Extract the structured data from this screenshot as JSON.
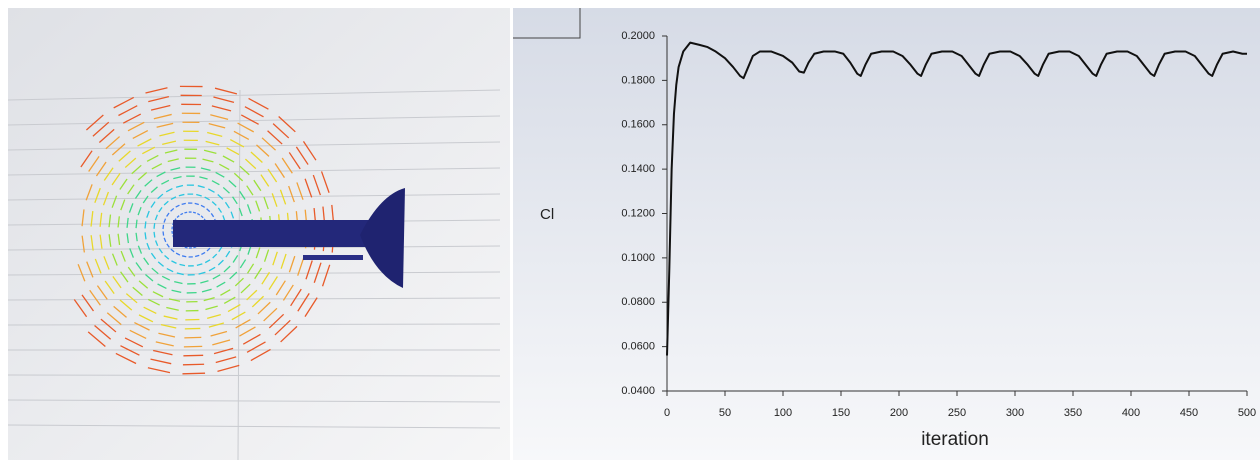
{
  "chart_data": {
    "type": "line",
    "ylabel": "Cl",
    "xlabel": "iteration",
    "color": "#111111",
    "x": [
      0,
      2,
      4,
      6,
      8,
      10,
      14,
      20,
      28,
      35,
      42,
      50,
      57,
      63,
      66,
      70,
      74,
      80,
      90,
      100,
      108,
      114,
      118,
      122,
      127,
      135,
      145,
      152,
      158,
      164,
      167,
      171,
      176,
      185,
      195,
      203,
      210,
      216,
      219,
      223,
      228,
      237,
      246,
      254,
      260,
      266,
      269,
      273,
      278,
      287,
      296,
      304,
      311,
      317,
      320,
      324,
      329,
      338,
      347,
      355,
      361,
      367,
      370,
      374,
      379,
      388,
      397,
      405,
      411,
      417,
      420,
      424,
      429,
      438,
      447,
      455,
      461,
      467,
      470,
      474,
      479,
      488,
      496,
      500
    ],
    "values": [
      0.056,
      0.095,
      0.14,
      0.165,
      0.178,
      0.186,
      0.193,
      0.197,
      0.196,
      0.195,
      0.193,
      0.19,
      0.186,
      0.182,
      0.181,
      0.186,
      0.191,
      0.193,
      0.193,
      0.191,
      0.188,
      0.184,
      0.1835,
      0.188,
      0.192,
      0.193,
      0.193,
      0.192,
      0.188,
      0.183,
      0.182,
      0.187,
      0.192,
      0.193,
      0.193,
      0.191,
      0.187,
      0.183,
      0.182,
      0.187,
      0.192,
      0.193,
      0.193,
      0.191,
      0.187,
      0.183,
      0.182,
      0.187,
      0.192,
      0.193,
      0.193,
      0.191,
      0.187,
      0.183,
      0.182,
      0.187,
      0.192,
      0.193,
      0.193,
      0.191,
      0.187,
      0.183,
      0.182,
      0.187,
      0.192,
      0.193,
      0.193,
      0.191,
      0.187,
      0.183,
      0.182,
      0.187,
      0.192,
      0.193,
      0.193,
      0.191,
      0.187,
      0.183,
      0.182,
      0.187,
      0.192,
      0.193,
      0.192,
      0.192
    ],
    "xlim": [
      0,
      500
    ],
    "xticks": [
      0,
      50,
      100,
      150,
      200,
      250,
      300,
      350,
      400,
      450,
      500
    ],
    "ylim": [
      0.04,
      0.2
    ],
    "yticks": [
      {
        "value": 0.04,
        "label": "0.0400"
      },
      {
        "value": 0.06,
        "label": "0.0600"
      },
      {
        "value": 0.08,
        "label": "0.0800"
      },
      {
        "value": 0.1,
        "label": "0.1000"
      },
      {
        "value": 0.12,
        "label": "0.1200"
      },
      {
        "value": 0.14,
        "label": "0.1400"
      },
      {
        "value": 0.16,
        "label": "0.1600"
      },
      {
        "value": 0.18,
        "label": "0.1800"
      },
      {
        "value": 0.2,
        "label": "0.2000"
      }
    ]
  }
}
